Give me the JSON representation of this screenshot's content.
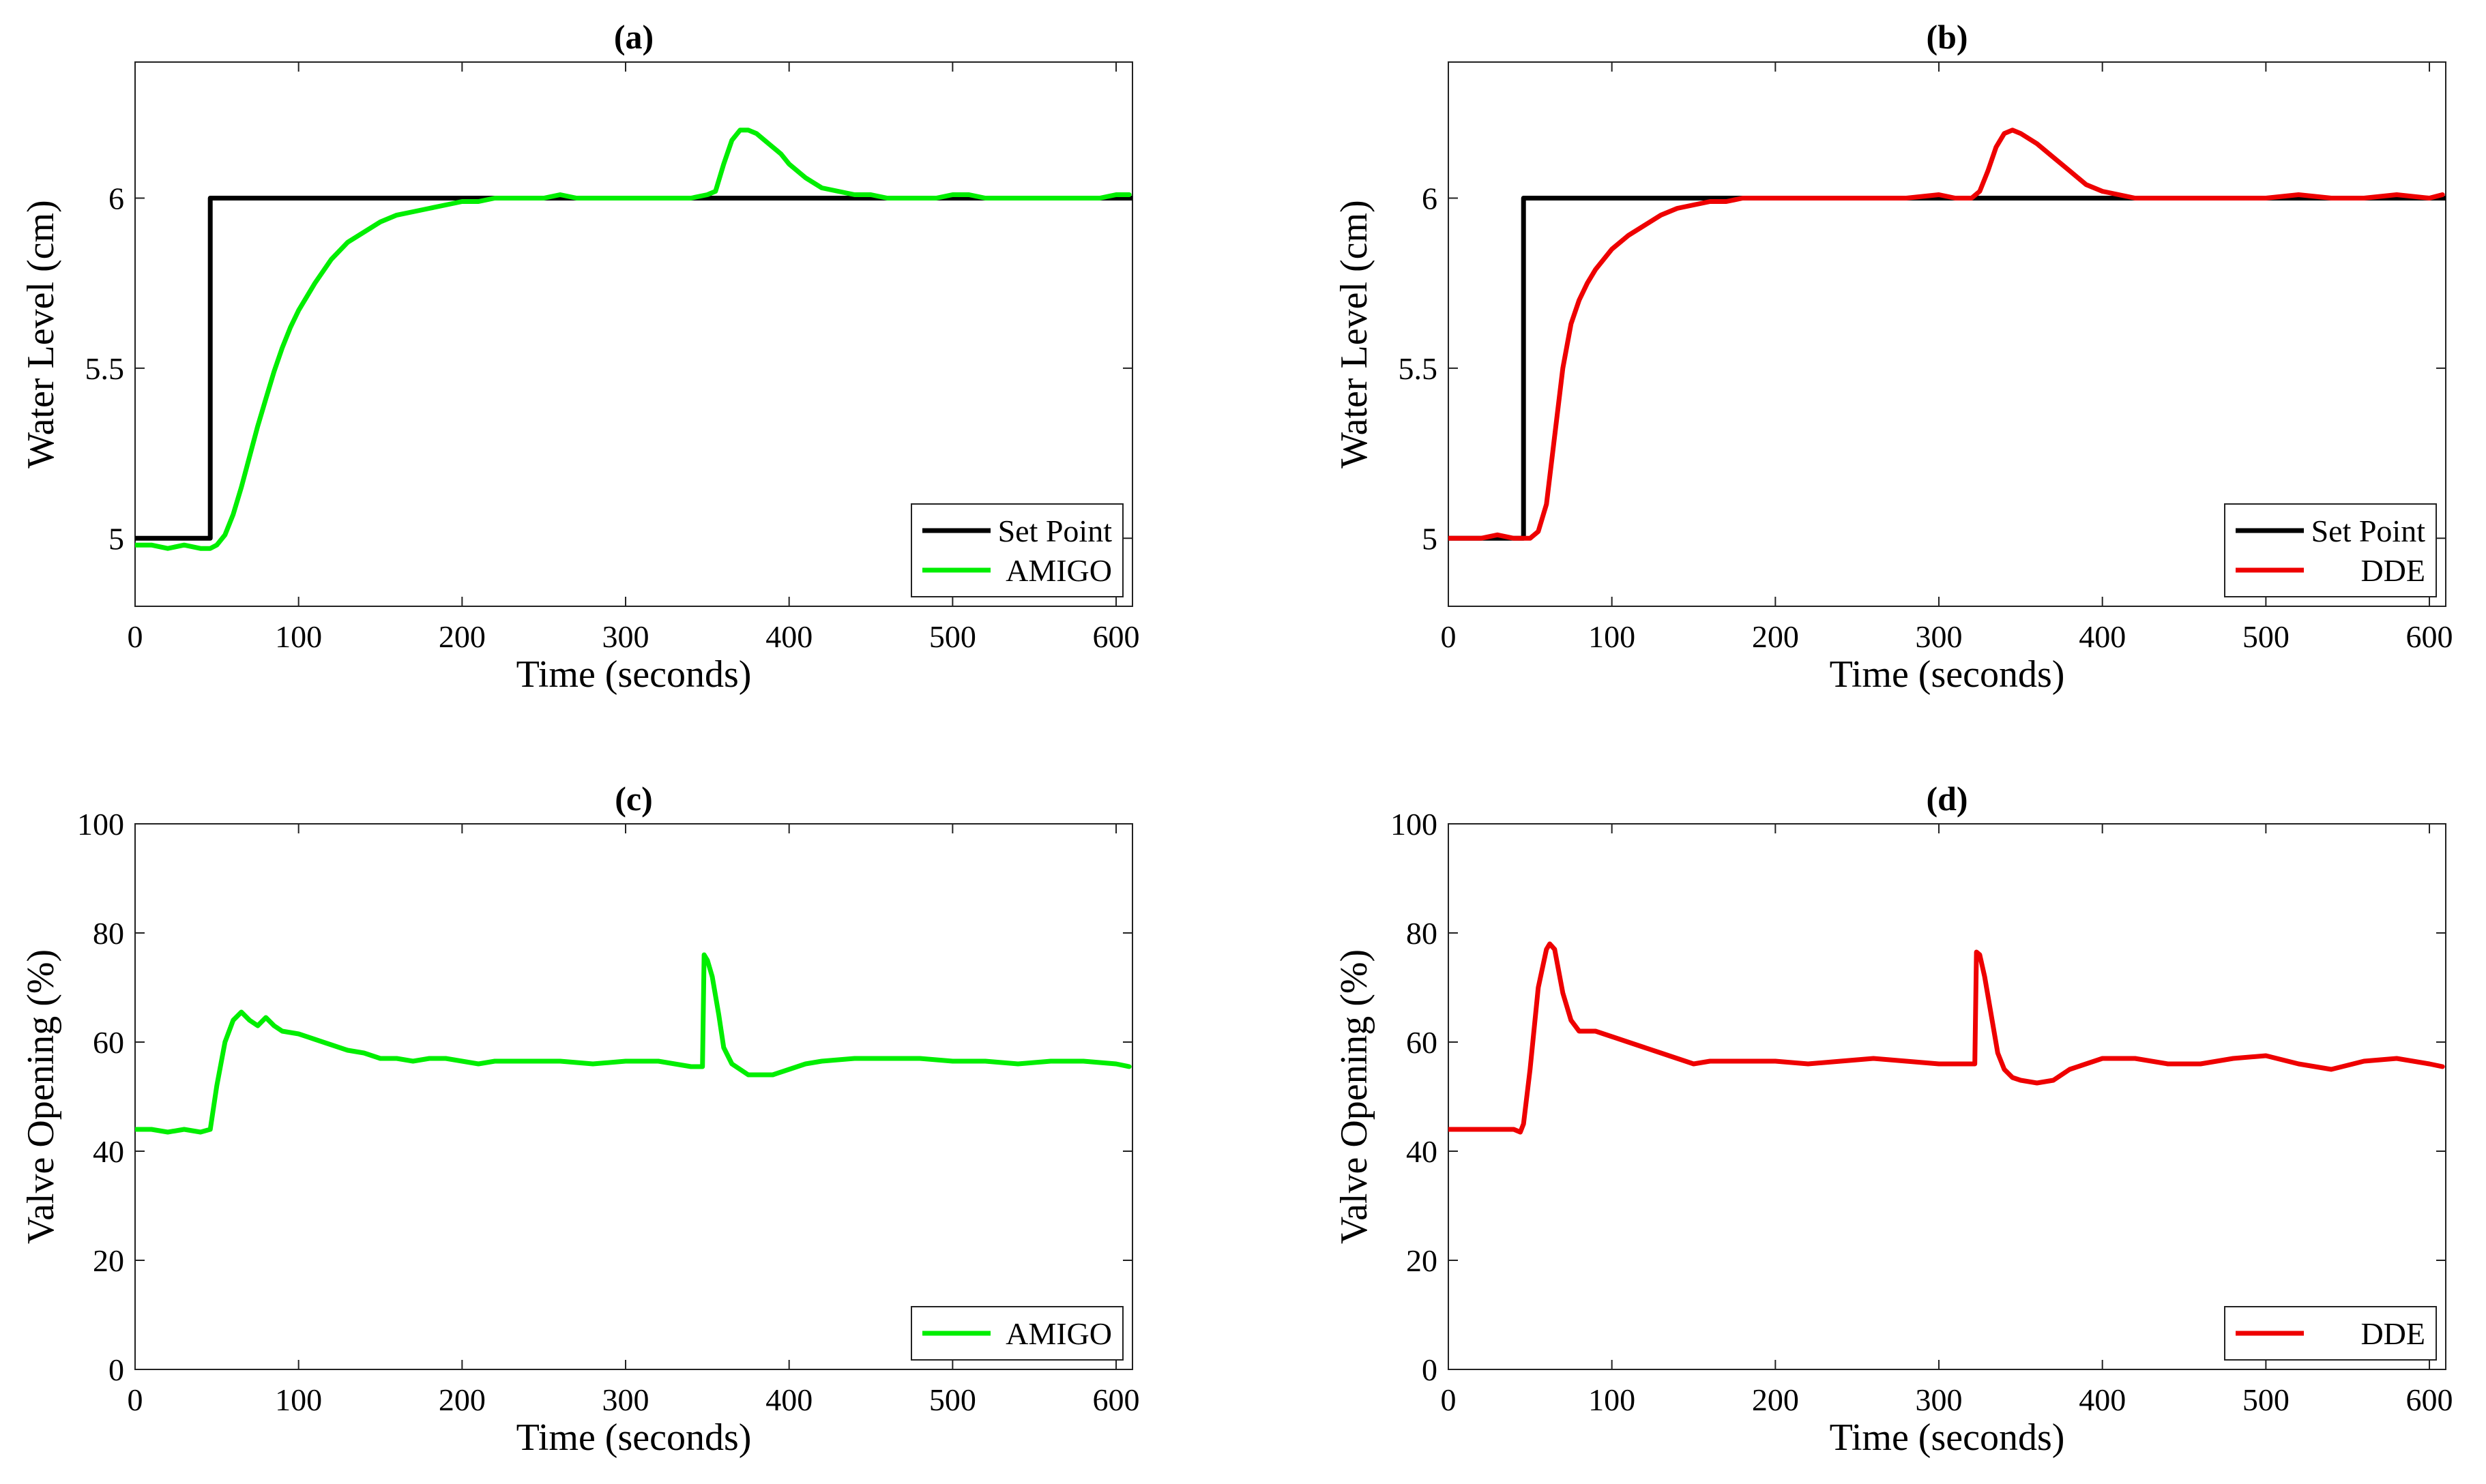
{
  "colors": {
    "setpoint": "#000000",
    "amigo": "#00ee00",
    "dde": "#ee0000"
  },
  "chart_data": [
    {
      "type": "line",
      "title": "(a)",
      "xlabel": "Time (seconds)",
      "ylabel": "Water Level (cm)",
      "xlim": [
        0,
        610
      ],
      "ylim": [
        4.8,
        6.4
      ],
      "xticks": [
        "0",
        "100",
        "200",
        "300",
        "400",
        "500",
        "600"
      ],
      "yticks": [
        "5",
        "5.5",
        "6"
      ],
      "legend": [
        "Set Point",
        "AMIGO"
      ],
      "legend_position": "bottom-right",
      "series": [
        {
          "name": "Set Point",
          "color": "#000000",
          "x": [
            0,
            46,
            46,
            610
          ],
          "y": [
            5.0,
            5.0,
            6.0,
            6.0
          ]
        },
        {
          "name": "AMIGO",
          "color": "#00ee00",
          "x": [
            0,
            10,
            20,
            30,
            40,
            46,
            50,
            55,
            60,
            65,
            70,
            75,
            80,
            85,
            90,
            95,
            100,
            110,
            120,
            130,
            140,
            150,
            160,
            170,
            180,
            190,
            200,
            210,
            220,
            230,
            240,
            250,
            260,
            270,
            280,
            290,
            300,
            310,
            320,
            330,
            340,
            350,
            355,
            360,
            365,
            370,
            375,
            380,
            385,
            390,
            395,
            400,
            410,
            420,
            430,
            440,
            450,
            460,
            470,
            480,
            490,
            500,
            510,
            520,
            530,
            540,
            550,
            560,
            570,
            580,
            590,
            600,
            608
          ],
          "y": [
            4.98,
            4.98,
            4.97,
            4.98,
            4.97,
            4.97,
            4.98,
            5.01,
            5.07,
            5.15,
            5.24,
            5.33,
            5.41,
            5.49,
            5.56,
            5.62,
            5.67,
            5.75,
            5.82,
            5.87,
            5.9,
            5.93,
            5.95,
            5.96,
            5.97,
            5.98,
            5.99,
            5.99,
            6.0,
            6.0,
            6.0,
            6.0,
            6.01,
            6.0,
            6.0,
            6.0,
            6.0,
            6.0,
            6.0,
            6.0,
            6.0,
            6.01,
            6.02,
            6.1,
            6.17,
            6.2,
            6.2,
            6.19,
            6.17,
            6.15,
            6.13,
            6.1,
            6.06,
            6.03,
            6.02,
            6.01,
            6.01,
            6.0,
            6.0,
            6.0,
            6.0,
            6.01,
            6.01,
            6.0,
            6.0,
            6.0,
            6.0,
            6.0,
            6.0,
            6.0,
            6.0,
            6.01,
            6.01
          ]
        }
      ]
    },
    {
      "type": "line",
      "title": "(b)",
      "xlabel": "Time (seconds)",
      "ylabel": "Water Level (cm)",
      "xlim": [
        0,
        610
      ],
      "ylim": [
        4.8,
        6.4
      ],
      "xticks": [
        "0",
        "100",
        "200",
        "300",
        "400",
        "500",
        "600"
      ],
      "yticks": [
        "5",
        "5.5",
        "6"
      ],
      "legend": [
        "Set Point",
        "DDE"
      ],
      "legend_position": "bottom-right",
      "series": [
        {
          "name": "Set Point",
          "color": "#000000",
          "x": [
            0,
            46,
            46,
            610
          ],
          "y": [
            5.0,
            5.0,
            6.0,
            6.0
          ]
        },
        {
          "name": "DDE",
          "color": "#ee0000",
          "x": [
            0,
            10,
            20,
            30,
            40,
            50,
            55,
            60,
            65,
            70,
            75,
            80,
            85,
            90,
            100,
            110,
            120,
            130,
            140,
            150,
            160,
            170,
            180,
            190,
            200,
            220,
            240,
            260,
            280,
            300,
            310,
            320,
            325,
            330,
            335,
            340,
            345,
            350,
            360,
            370,
            380,
            390,
            400,
            410,
            420,
            440,
            460,
            480,
            500,
            520,
            540,
            560,
            580,
            600,
            608
          ],
          "y": [
            5.0,
            5.0,
            5.0,
            5.01,
            5.0,
            5.0,
            5.02,
            5.1,
            5.3,
            5.5,
            5.63,
            5.7,
            5.75,
            5.79,
            5.85,
            5.89,
            5.92,
            5.95,
            5.97,
            5.98,
            5.99,
            5.99,
            6.0,
            6.0,
            6.0,
            6.0,
            6.0,
            6.0,
            6.0,
            6.01,
            6.0,
            6.0,
            6.02,
            6.08,
            6.15,
            6.19,
            6.2,
            6.19,
            6.16,
            6.12,
            6.08,
            6.04,
            6.02,
            6.01,
            6.0,
            6.0,
            6.0,
            6.0,
            6.0,
            6.01,
            6.0,
            6.0,
            6.01,
            6.0,
            6.01
          ]
        }
      ]
    },
    {
      "type": "line",
      "title": "(c)",
      "xlabel": "Time (seconds)",
      "ylabel": "Valve Opening (%)",
      "xlim": [
        0,
        610
      ],
      "ylim": [
        0,
        100
      ],
      "xticks": [
        "0",
        "100",
        "200",
        "300",
        "400",
        "500",
        "600"
      ],
      "yticks": [
        "0",
        "20",
        "40",
        "60",
        "80",
        "100"
      ],
      "legend": [
        "AMIGO"
      ],
      "legend_position": "bottom-right",
      "series": [
        {
          "name": "AMIGO",
          "color": "#00ee00",
          "x": [
            0,
            10,
            20,
            30,
            40,
            46,
            50,
            55,
            60,
            65,
            70,
            75,
            80,
            85,
            90,
            100,
            110,
            120,
            130,
            140,
            150,
            160,
            170,
            180,
            190,
            200,
            210,
            220,
            240,
            260,
            280,
            300,
            320,
            340,
            347,
            348,
            350,
            353,
            357,
            360,
            365,
            370,
            375,
            380,
            390,
            400,
            410,
            420,
            440,
            460,
            480,
            500,
            520,
            540,
            560,
            580,
            600,
            608
          ],
          "y": [
            44,
            44,
            43.5,
            44,
            43.5,
            44,
            52,
            60,
            64,
            65.5,
            64,
            63,
            64.5,
            63,
            62,
            61.5,
            60.5,
            59.5,
            58.5,
            58,
            57,
            57,
            56.5,
            57,
            57,
            56.5,
            56,
            56.5,
            56.5,
            56.5,
            56,
            56.5,
            56.5,
            55.5,
            55.5,
            76,
            75,
            72,
            65,
            59,
            56,
            55,
            54,
            54,
            54,
            55,
            56,
            56.5,
            57,
            57,
            57,
            56.5,
            56.5,
            56,
            56.5,
            56.5,
            56,
            55.5
          ]
        }
      ]
    },
    {
      "type": "line",
      "title": "(d)",
      "xlabel": "Time (seconds)",
      "ylabel": "Valve Opening (%)",
      "xlim": [
        0,
        610
      ],
      "ylim": [
        0,
        100
      ],
      "xticks": [
        "0",
        "100",
        "200",
        "300",
        "400",
        "500",
        "600"
      ],
      "yticks": [
        "0",
        "20",
        "40",
        "60",
        "80",
        "100"
      ],
      "legend": [
        "DDE"
      ],
      "legend_position": "bottom-right",
      "series": [
        {
          "name": "DDE",
          "color": "#ee0000",
          "x": [
            0,
            10,
            20,
            30,
            40,
            44,
            46,
            50,
            55,
            60,
            62,
            65,
            70,
            75,
            80,
            90,
            100,
            110,
            120,
            130,
            140,
            150,
            160,
            180,
            200,
            220,
            240,
            260,
            280,
            300,
            315,
            322,
            323,
            325,
            328,
            332,
            336,
            340,
            345,
            350,
            360,
            370,
            380,
            390,
            400,
            420,
            440,
            460,
            480,
            500,
            520,
            540,
            560,
            580,
            600,
            608
          ],
          "y": [
            44,
            44,
            44,
            44,
            44,
            43.5,
            45,
            55,
            70,
            77,
            78,
            77,
            69,
            64,
            62,
            62,
            61,
            60,
            59,
            58,
            57,
            56,
            56.5,
            56.5,
            56.5,
            56,
            56.5,
            57,
            56.5,
            56,
            56,
            56,
            76.5,
            76,
            72,
            65,
            58,
            55,
            53.5,
            53,
            52.5,
            53,
            55,
            56,
            57,
            57,
            56,
            56,
            57,
            57.5,
            56,
            55,
            56.5,
            57,
            56,
            55.5
          ]
        }
      ]
    }
  ]
}
